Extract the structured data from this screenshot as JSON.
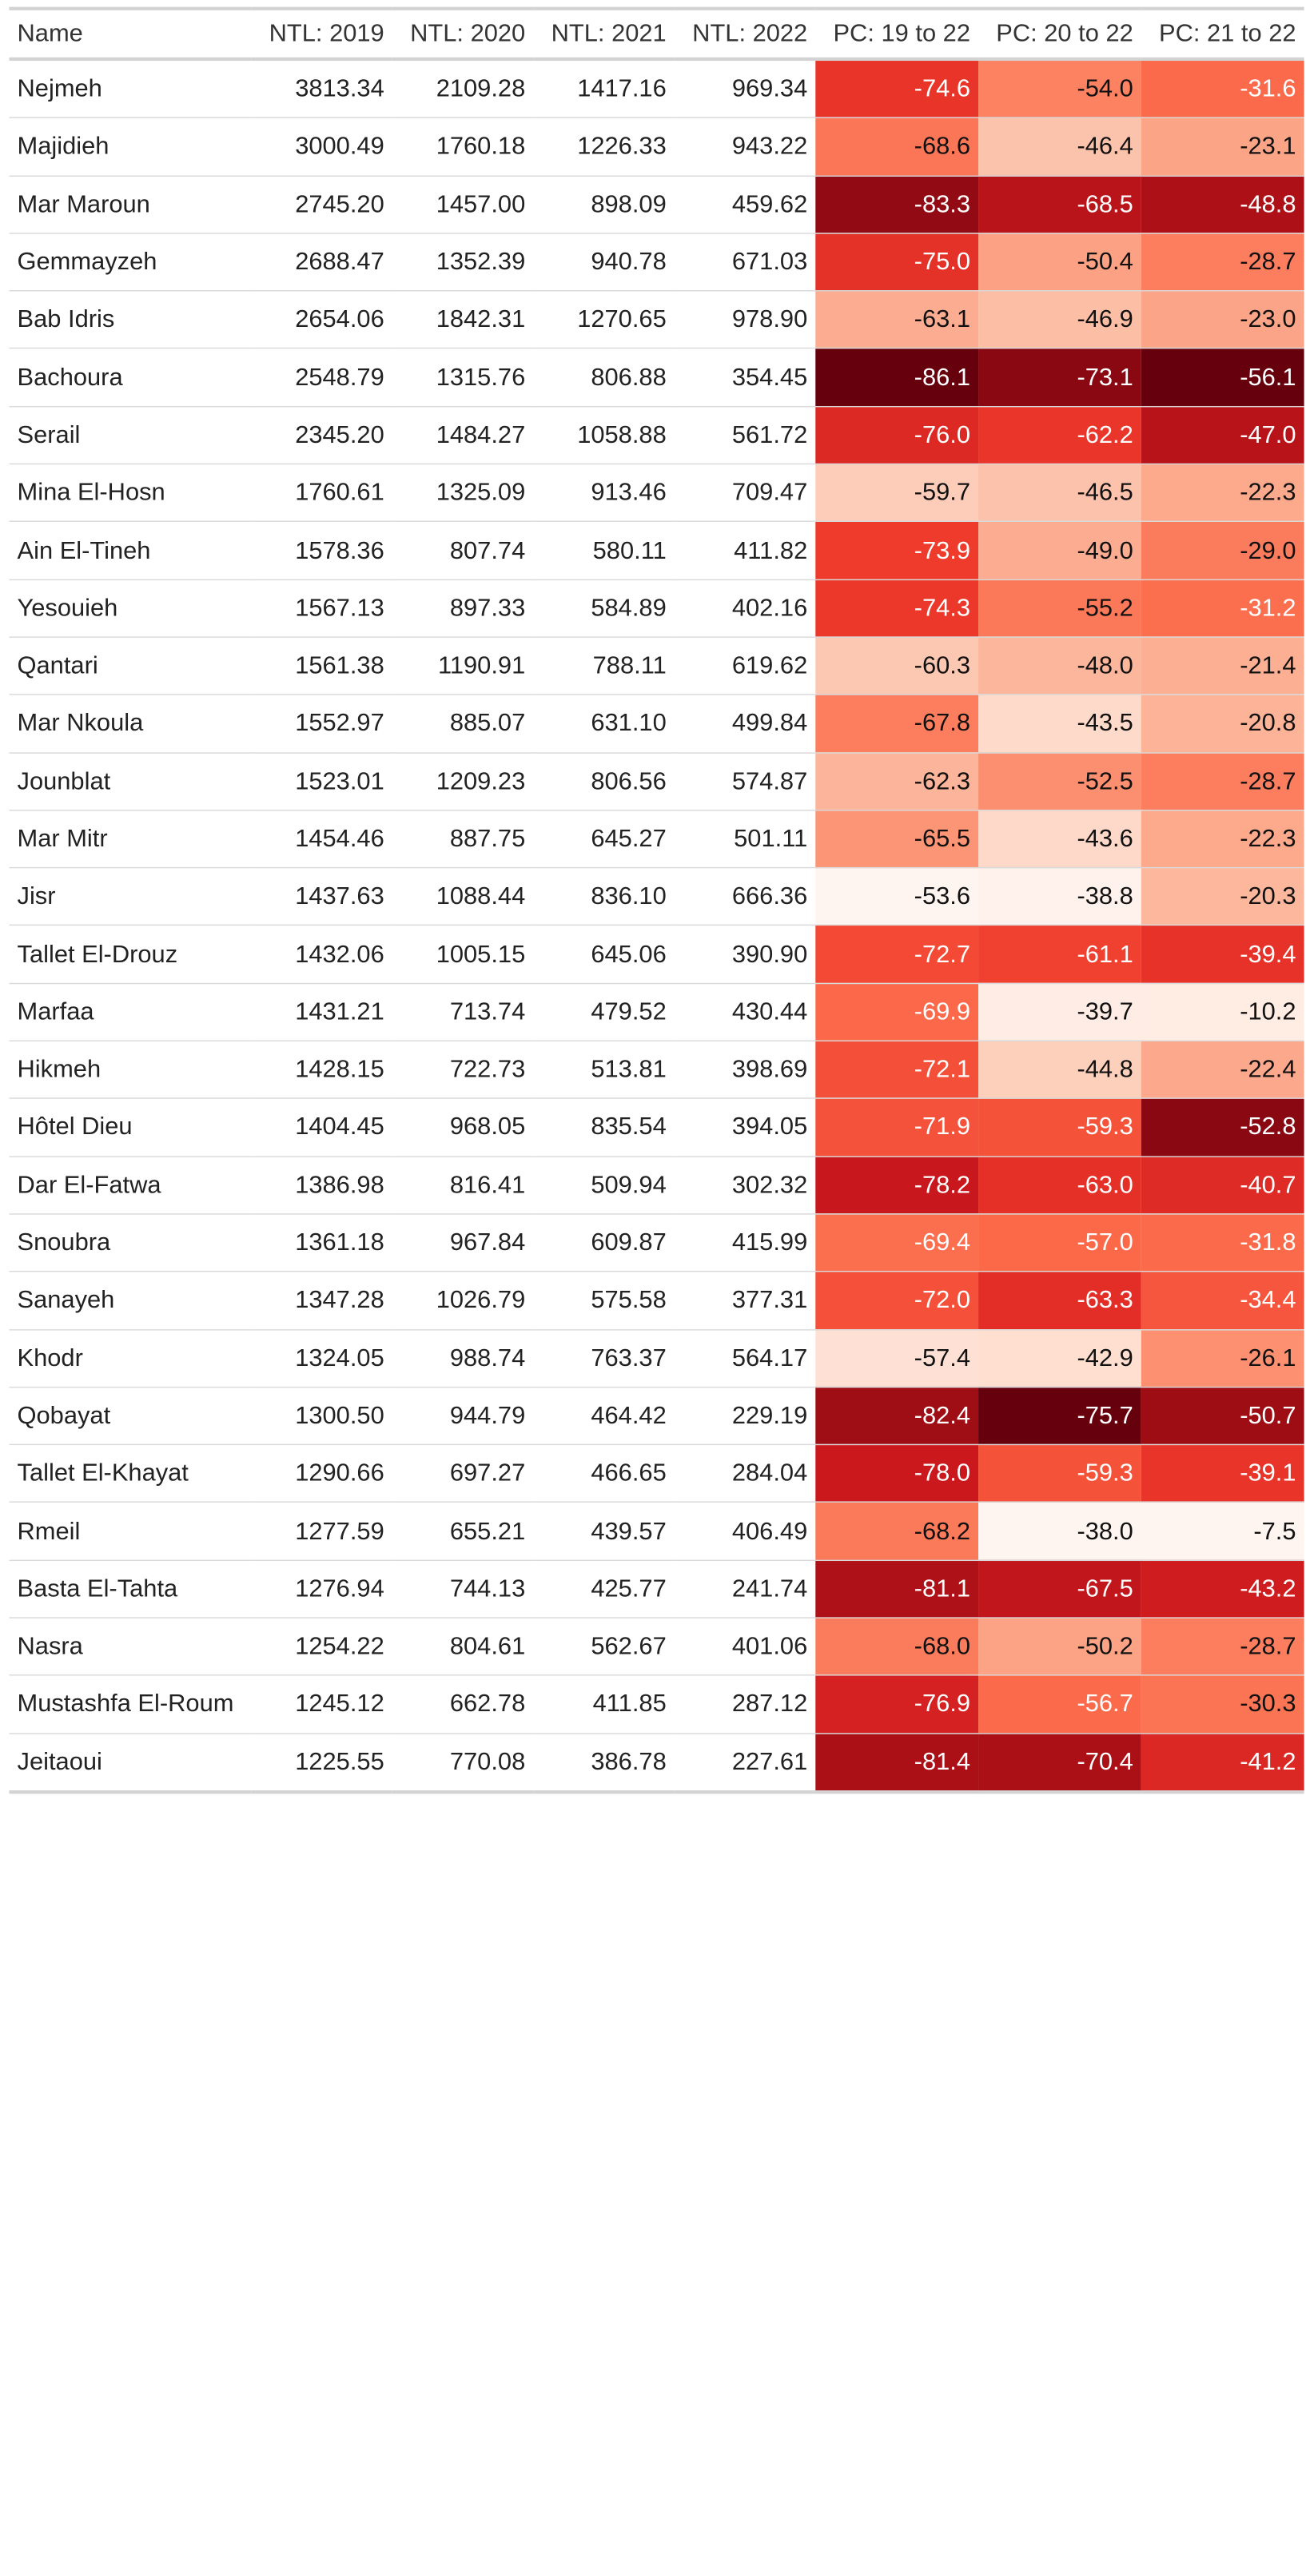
{
  "chart_data": {
    "type": "table",
    "columns": [
      "Name",
      "NTL: 2019",
      "NTL: 2020",
      "NTL: 2021",
      "NTL: 2022",
      "PC: 19 to 22",
      "PC: 20 to 22",
      "PC: 21 to 22"
    ],
    "heatmap_columns": [
      5,
      6,
      7
    ],
    "color_scale": [
      "#fff5f0",
      "#fee0d2",
      "#fcbba1",
      "#fc9272",
      "#fb6a4a",
      "#ef3b2c",
      "#cb181d",
      "#a50f15",
      "#67000d"
    ],
    "rows": [
      [
        "Nejmeh",
        "3813.34",
        "2109.28",
        "1417.16",
        "969.34",
        "-74.6",
        "-54.0",
        "-31.6"
      ],
      [
        "Majidieh",
        "3000.49",
        "1760.18",
        "1226.33",
        "943.22",
        "-68.6",
        "-46.4",
        "-23.1"
      ],
      [
        "Mar Maroun",
        "2745.20",
        "1457.00",
        "898.09",
        "459.62",
        "-83.3",
        "-68.5",
        "-48.8"
      ],
      [
        "Gemmayzeh",
        "2688.47",
        "1352.39",
        "940.78",
        "671.03",
        "-75.0",
        "-50.4",
        "-28.7"
      ],
      [
        "Bab Idris",
        "2654.06",
        "1842.31",
        "1270.65",
        "978.90",
        "-63.1",
        "-46.9",
        "-23.0"
      ],
      [
        "Bachoura",
        "2548.79",
        "1315.76",
        "806.88",
        "354.45",
        "-86.1",
        "-73.1",
        "-56.1"
      ],
      [
        "Serail",
        "2345.20",
        "1484.27",
        "1058.88",
        "561.72",
        "-76.0",
        "-62.2",
        "-47.0"
      ],
      [
        "Mina El-Hosn",
        "1760.61",
        "1325.09",
        "913.46",
        "709.47",
        "-59.7",
        "-46.5",
        "-22.3"
      ],
      [
        "Ain El-Tineh",
        "1578.36",
        "807.74",
        "580.11",
        "411.82",
        "-73.9",
        "-49.0",
        "-29.0"
      ],
      [
        "Yesouieh",
        "1567.13",
        "897.33",
        "584.89",
        "402.16",
        "-74.3",
        "-55.2",
        "-31.2"
      ],
      [
        "Qantari",
        "1561.38",
        "1190.91",
        "788.11",
        "619.62",
        "-60.3",
        "-48.0",
        "-21.4"
      ],
      [
        "Mar Nkoula",
        "1552.97",
        "885.07",
        "631.10",
        "499.84",
        "-67.8",
        "-43.5",
        "-20.8"
      ],
      [
        "Jounblat",
        "1523.01",
        "1209.23",
        "806.56",
        "574.87",
        "-62.3",
        "-52.5",
        "-28.7"
      ],
      [
        "Mar Mitr",
        "1454.46",
        "887.75",
        "645.27",
        "501.11",
        "-65.5",
        "-43.6",
        "-22.3"
      ],
      [
        "Jisr",
        "1437.63",
        "1088.44",
        "836.10",
        "666.36",
        "-53.6",
        "-38.8",
        "-20.3"
      ],
      [
        "Tallet El-Drouz",
        "1432.06",
        "1005.15",
        "645.06",
        "390.90",
        "-72.7",
        "-61.1",
        "-39.4"
      ],
      [
        "Marfaa",
        "1431.21",
        "713.74",
        "479.52",
        "430.44",
        "-69.9",
        "-39.7",
        "-10.2"
      ],
      [
        "Hikmeh",
        "1428.15",
        "722.73",
        "513.81",
        "398.69",
        "-72.1",
        "-44.8",
        "-22.4"
      ],
      [
        "Hôtel Dieu",
        "1404.45",
        "968.05",
        "835.54",
        "394.05",
        "-71.9",
        "-59.3",
        "-52.8"
      ],
      [
        "Dar El-Fatwa",
        "1386.98",
        "816.41",
        "509.94",
        "302.32",
        "-78.2",
        "-63.0",
        "-40.7"
      ],
      [
        "Snoubra",
        "1361.18",
        "967.84",
        "609.87",
        "415.99",
        "-69.4",
        "-57.0",
        "-31.8"
      ],
      [
        "Sanayeh",
        "1347.28",
        "1026.79",
        "575.58",
        "377.31",
        "-72.0",
        "-63.3",
        "-34.4"
      ],
      [
        "Khodr",
        "1324.05",
        "988.74",
        "763.37",
        "564.17",
        "-57.4",
        "-42.9",
        "-26.1"
      ],
      [
        "Qobayat",
        "1300.50",
        "944.79",
        "464.42",
        "229.19",
        "-82.4",
        "-75.7",
        "-50.7"
      ],
      [
        "Tallet El-Khayat",
        "1290.66",
        "697.27",
        "466.65",
        "284.04",
        "-78.0",
        "-59.3",
        "-39.1"
      ],
      [
        "Rmeil",
        "1277.59",
        "655.21",
        "439.57",
        "406.49",
        "-68.2",
        "-38.0",
        "-7.5"
      ],
      [
        "Basta El-Tahta",
        "1276.94",
        "744.13",
        "425.77",
        "241.74",
        "-81.1",
        "-67.5",
        "-43.2"
      ],
      [
        "Nasra",
        "1254.22",
        "804.61",
        "562.67",
        "401.06",
        "-68.0",
        "-50.2",
        "-28.7"
      ],
      [
        "Mustashfa El-Roum",
        "1245.12",
        "662.78",
        "411.85",
        "287.12",
        "-76.9",
        "-56.7",
        "-30.3"
      ],
      [
        "Jeitaoui",
        "1225.55",
        "770.08",
        "386.78",
        "227.61",
        "-81.4",
        "-70.4",
        "-41.2"
      ]
    ]
  }
}
